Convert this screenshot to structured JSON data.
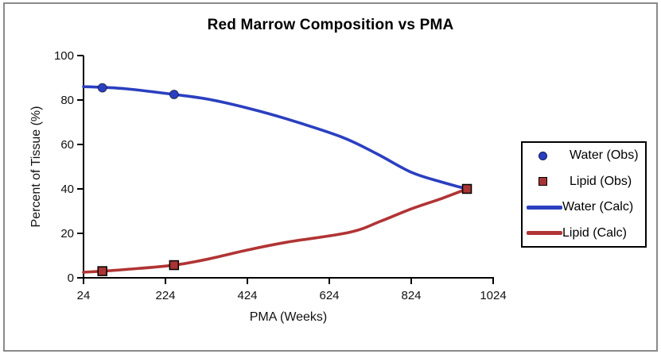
{
  "title": "Red Marrow Composition vs PMA",
  "chart_data": {
    "type": "line",
    "title": "Red Marrow Composition vs PMA",
    "xlabel": "PMA (Weeks)",
    "ylabel": "Percent of Tissue (%)",
    "xlim": [
      24,
      1024
    ],
    "ylim": [
      0,
      100
    ],
    "xticks": [
      24,
      224,
      424,
      624,
      824,
      1024
    ],
    "yticks": [
      0,
      20,
      40,
      60,
      80,
      100
    ],
    "grid": false,
    "colors": {
      "water": "#2a3fc0",
      "lipid": "#b13434",
      "axis": "#000000",
      "tick_text": "#111111",
      "frame": "#8a8a8a"
    },
    "legend": {
      "position": "right-outside",
      "items": [
        {
          "label": "Water (Obs)",
          "marker": "circle",
          "color": "#2a3fc0"
        },
        {
          "label": "Lipid (Obs)",
          "marker": "square",
          "color": "#a93434"
        },
        {
          "label": "Water (Calc)",
          "marker": "line",
          "color": "#2a3fc0"
        },
        {
          "label": "Lipid (Calc)",
          "marker": "line",
          "color": "#b13434"
        }
      ]
    },
    "series": [
      {
        "name": "Water (Calc)",
        "kind": "line",
        "color": "#2a3fc0",
        "points": [
          [
            24,
            86
          ],
          [
            70,
            85.7
          ],
          [
            130,
            85.0
          ],
          [
            245,
            82.5
          ],
          [
            330,
            80.3
          ],
          [
            424,
            76.4
          ],
          [
            520,
            71.5
          ],
          [
            655,
            63.3
          ],
          [
            740,
            55.8
          ],
          [
            824,
            47.5
          ],
          [
            900,
            43.0
          ],
          [
            960,
            40
          ]
        ]
      },
      {
        "name": "Lipid (Calc)",
        "kind": "line",
        "color": "#b13434",
        "points": [
          [
            24,
            2.5
          ],
          [
            70,
            3.0
          ],
          [
            130,
            3.8
          ],
          [
            245,
            5.7
          ],
          [
            330,
            8.5
          ],
          [
            424,
            12.5
          ],
          [
            520,
            16.0
          ],
          [
            674,
            20.5
          ],
          [
            750,
            25.5
          ],
          [
            824,
            31.0
          ],
          [
            900,
            35.8
          ],
          [
            960,
            40
          ]
        ]
      },
      {
        "name": "Water (Obs)",
        "kind": "scatter",
        "marker": "circle",
        "color": "#2a3fc0",
        "points": [
          [
            70,
            85.5
          ],
          [
            245,
            82.5
          ]
        ]
      },
      {
        "name": "Lipid (Obs)",
        "kind": "scatter",
        "marker": "square",
        "color": "#a93434",
        "points": [
          [
            70,
            3.0
          ],
          [
            245,
            5.7
          ],
          [
            960,
            40
          ]
        ]
      }
    ]
  }
}
